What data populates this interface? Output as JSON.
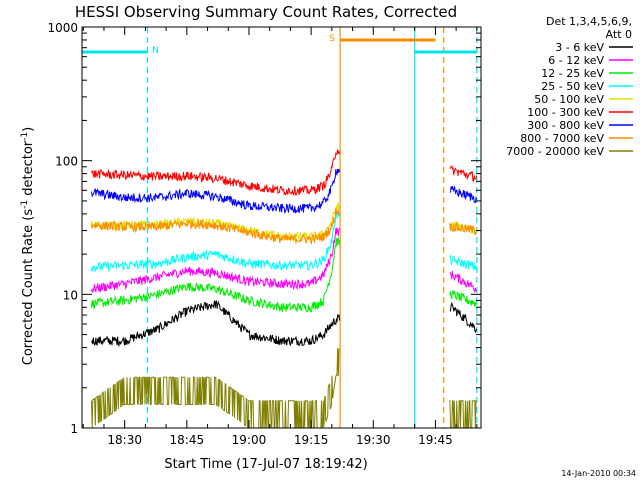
{
  "chart_data": {
    "type": "line",
    "title": "HESSI Observing Summary Count Rates, Corrected",
    "xlabel": "Start Time (17-Jul-07 18:19:42)",
    "ylabel": "Corrected Count Rate (s",
    "ylabel_sup1": "-1",
    "ylabel_mid": " detector",
    "ylabel_sup2": "-1",
    "ylabel_end": ")",
    "y_scale": "log",
    "ylim": [
      1,
      1000
    ],
    "xlim": [
      "18:19:42",
      "19:56:00"
    ],
    "x_ticks": [
      "18:30",
      "18:45",
      "19:00",
      "19:15",
      "19:30",
      "19:45"
    ],
    "y_ticks": [
      "1",
      "10",
      "100",
      "1000"
    ],
    "legend_title_lines": [
      "Det 1,3,4,5,6,9,",
      "Att 0"
    ],
    "legend_position": "right",
    "timestamp": "14-Jan-2010 00:34",
    "flags": [
      {
        "label": "N",
        "color": "#00e5ee",
        "start": "18:19:42",
        "end": "18:35:30",
        "level": 650
      },
      {
        "label": "S",
        "color": "#ff8c00",
        "start": "19:22:00",
        "end": "19:45:00",
        "level": 800
      },
      {
        "label": "",
        "color": "#00e5ee",
        "start": "19:40:00",
        "end": "19:55:00",
        "level": 650
      }
    ],
    "vertical_markers": [
      {
        "time": "18:35:30",
        "color": "#00e5ee",
        "style": "dashed"
      },
      {
        "time": "19:22:00",
        "color": "#ff8c00",
        "style": "solid"
      },
      {
        "time": "19:40:00",
        "color": "#00e5ee",
        "style": "solid"
      },
      {
        "time": "19:47:00",
        "color": "#ff8c00",
        "style": "dashed"
      },
      {
        "time": "19:55:00",
        "color": "#00e5ee",
        "style": "dashed"
      }
    ],
    "gaps": [
      [
        "19:22:00",
        "19:48:30"
      ]
    ],
    "x": [
      "18:22",
      "18:30",
      "18:38",
      "18:45",
      "18:52",
      "19:00",
      "19:08",
      "19:15",
      "19:18",
      "19:20",
      "19:21",
      "19:49",
      "19:55"
    ],
    "series": [
      {
        "name": "3 - 6 keV",
        "color": "#000000",
        "values": [
          4.5,
          4.5,
          5.5,
          7.5,
          8.5,
          5.0,
          4.5,
          4.5,
          5.0,
          6.0,
          6.5,
          8.0,
          5.5
        ]
      },
      {
        "name": "6 - 12 keV",
        "color": "#ff00ff",
        "values": [
          11,
          12,
          13.5,
          15,
          14.5,
          12.5,
          12,
          12,
          14,
          20,
          30,
          14,
          11
        ]
      },
      {
        "name": "12 - 25 keV",
        "color": "#00ee00",
        "values": [
          8.5,
          9,
          10,
          11.5,
          11,
          9,
          8,
          8,
          9,
          15,
          25,
          10,
          8.5
        ]
      },
      {
        "name": "25 - 50 keV",
        "color": "#00ffff",
        "values": [
          16,
          16.5,
          17,
          19,
          20,
          17,
          16.5,
          16.5,
          18,
          25,
          40,
          18,
          16
        ]
      },
      {
        "name": "50 - 100 keV",
        "color": "#e0e000",
        "values": [
          33,
          33,
          33,
          35,
          34,
          30,
          27,
          27,
          28,
          35,
          45,
          33,
          30
        ]
      },
      {
        "name": "100 - 300 keV",
        "color": "#ff0000",
        "values": [
          80,
          78,
          76,
          77,
          74,
          65,
          60,
          60,
          65,
          85,
          120,
          85,
          75
        ]
      },
      {
        "name": "300 - 800 keV",
        "color": "#0000ff",
        "values": [
          58,
          53,
          53,
          57,
          54,
          46,
          44,
          44,
          48,
          62,
          85,
          60,
          52
        ]
      },
      {
        "name": "800 - 7000 keV",
        "color": "#ff8c00",
        "values": [
          33,
          32,
          32,
          34,
          33,
          29,
          26,
          26,
          27,
          32,
          42,
          32,
          30
        ]
      },
      {
        "name": "7000 - 20000 keV",
        "color": "#808000",
        "values": [
          1,
          1.5,
          1.5,
          1.5,
          1.5,
          1,
          1,
          1,
          1,
          1.5,
          2.5,
          1,
          1
        ]
      }
    ]
  }
}
